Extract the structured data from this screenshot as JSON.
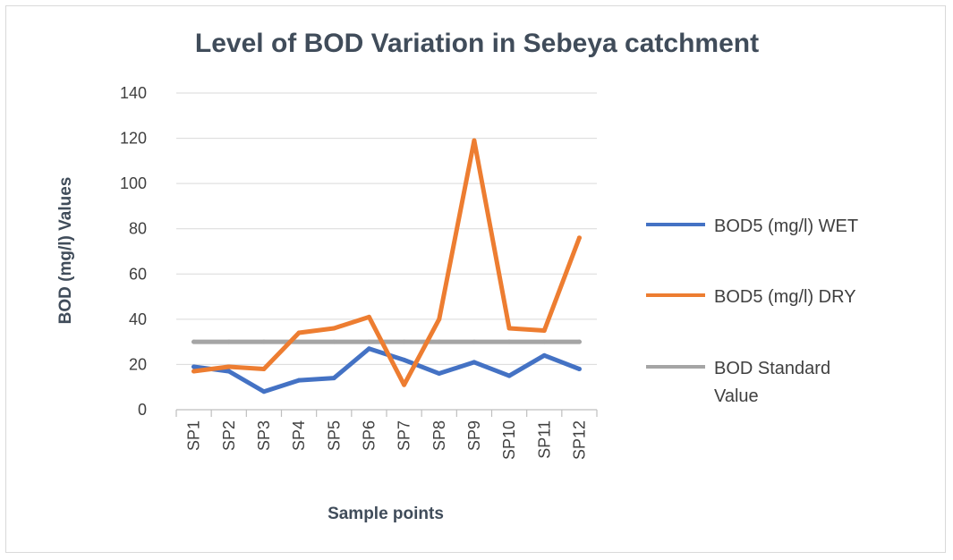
{
  "chart_data": {
    "type": "line",
    "title": "Level of BOD Variation in Sebeya catchment",
    "xlabel": "Sample points",
    "ylabel": "BOD (mg/l) Values",
    "ylim": [
      0,
      140
    ],
    "y_ticks": [
      "0",
      "20",
      "40",
      "60",
      "80",
      "100",
      "120",
      "140"
    ],
    "categories": [
      "SP1",
      "SP2",
      "SP3",
      "SP4",
      "SP5",
      "SP6",
      "SP7",
      "SP8",
      "SP9",
      "SP10",
      "SP11",
      "SP12"
    ],
    "grid": true,
    "legend_position": "right",
    "series": [
      {
        "name": "BOD5 (mg/l) WET",
        "color": "#4472c4",
        "values": [
          19,
          17,
          8,
          13,
          14,
          27,
          22,
          16,
          21,
          15,
          24,
          18
        ]
      },
      {
        "name": "BOD5 (mg/l) DRY",
        "color": "#ed7d31",
        "values": [
          17,
          19,
          18,
          34,
          36,
          41,
          11,
          40,
          119,
          36,
          35,
          76
        ]
      },
      {
        "name": "BOD Standard Value",
        "color": "#a5a5a5",
        "values": [
          30,
          30,
          30,
          30,
          30,
          30,
          30,
          30,
          30,
          30,
          30,
          30
        ],
        "label_lines": [
          "BOD Standard",
          "Value"
        ]
      }
    ]
  }
}
